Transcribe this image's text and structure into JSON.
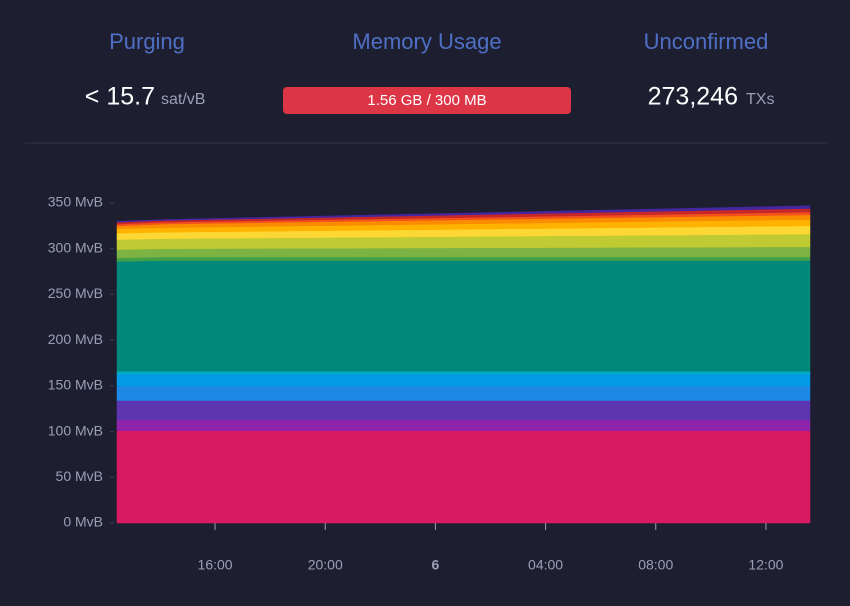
{
  "stats": [
    {
      "title": "Purging",
      "value": "< 15.7",
      "unit": "sat/vB"
    },
    {
      "title": "Memory Usage",
      "value": "1.56 GB / 300 MB"
    },
    {
      "title": "Unconfirmed",
      "value": "273,246",
      "unit": "TXs"
    }
  ],
  "chart_data": {
    "type": "stacked-area",
    "x": [
      12.44,
      14.2,
      37.6
    ],
    "xlim": [
      12.44,
      37.6
    ],
    "xticks": [
      {
        "value": 16,
        "label": "16:00"
      },
      {
        "value": 20,
        "label": "20:00"
      },
      {
        "value": 24,
        "label": "6"
      },
      {
        "value": 28,
        "label": "04:00"
      },
      {
        "value": 32,
        "label": "08:00"
      },
      {
        "value": 36,
        "label": "12:00"
      }
    ],
    "ylim": [
      0,
      350
    ],
    "yticks": [
      {
        "value": 0,
        "label": "0 MvB"
      },
      {
        "value": 50,
        "label": "50 MvB"
      },
      {
        "value": 100,
        "label": "100 MvB"
      },
      {
        "value": 150,
        "label": "150 MvB"
      },
      {
        "value": 200,
        "label": "200 MvB"
      },
      {
        "value": 250,
        "label": "250 MvB"
      },
      {
        "value": 300,
        "label": "300 MvB"
      },
      {
        "value": 350,
        "label": "350 MvB"
      }
    ],
    "series": [
      {
        "color": "#d81b60",
        "values": [
          101,
          101,
          101
        ]
      },
      {
        "color": "#8e24aa",
        "values": [
          12,
          12,
          12
        ]
      },
      {
        "color": "#5e35b1",
        "values": [
          21,
          21,
          21
        ]
      },
      {
        "color": "#1e88e5",
        "values": [
          16,
          16,
          16
        ]
      },
      {
        "color": "#039be5",
        "values": [
          13,
          13,
          13
        ]
      },
      {
        "color": "#00acc1",
        "values": [
          3,
          3,
          3
        ]
      },
      {
        "color": "#00897b",
        "values": [
          120,
          121,
          121
        ]
      },
      {
        "color": "#43a047",
        "values": [
          4,
          4,
          4
        ]
      },
      {
        "color": "#7cb342",
        "values": [
          9,
          9,
          11
        ]
      },
      {
        "color": "#c0ca33",
        "values": [
          11,
          11,
          14
        ]
      },
      {
        "color": "#fdd835",
        "values": [
          7,
          7,
          9
        ]
      },
      {
        "color": "#ffb300",
        "values": [
          5,
          5,
          7
        ]
      },
      {
        "color": "#fb8c00",
        "values": [
          3,
          4,
          5
        ]
      },
      {
        "color": "#f4511e",
        "values": [
          2,
          2,
          3
        ]
      },
      {
        "color": "#c62828",
        "values": [
          2,
          2,
          4
        ]
      },
      {
        "color": "#4527a0",
        "values": [
          1,
          1,
          3
        ]
      }
    ]
  }
}
